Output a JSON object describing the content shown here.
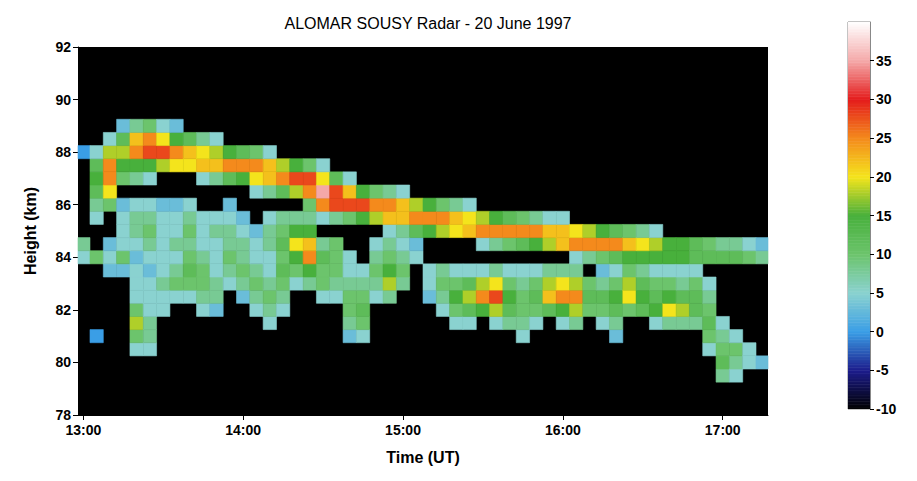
{
  "chart_data": {
    "type": "heatmap",
    "title": "ALOMAR SOUSY Radar - 20 June 1997",
    "x_label": "Time (UT)",
    "y_label": "Height (km)",
    "xlim": [
      778,
      1037
    ],
    "xticks": [
      {
        "value": 780,
        "label": "13:00"
      },
      {
        "value": 840,
        "label": "14:00"
      },
      {
        "value": 900,
        "label": "15:00"
      },
      {
        "value": 960,
        "label": "16:00"
      },
      {
        "value": 1020,
        "label": "17:00"
      }
    ],
    "ylim": [
      78,
      92
    ],
    "yticks": [
      78,
      80,
      82,
      84,
      86,
      88,
      90,
      92
    ],
    "grid": false,
    "x": [
      780,
      785,
      790,
      795,
      800,
      805,
      810,
      815,
      820,
      825,
      830,
      835,
      840,
      845,
      850,
      855,
      860,
      865,
      870,
      875,
      880,
      885,
      890,
      895,
      900,
      905,
      910,
      915,
      920,
      925,
      930,
      935,
      940,
      945,
      950,
      955,
      960,
      965,
      970,
      975,
      980,
      985,
      990,
      995,
      1000,
      1005,
      1010,
      1015,
      1020,
      1025,
      1030,
      1035
    ],
    "y": [
      79.5,
      80,
      80.5,
      81,
      81.5,
      82,
      82.5,
      83,
      83.5,
      84,
      84.5,
      85,
      85.5,
      86,
      86.5,
      87,
      87.5,
      88,
      88.5,
      89,
      89.5
    ],
    "values": [
      [
        null,
        null,
        null,
        null,
        null,
        null,
        null,
        null,
        null,
        5,
        8,
        null,
        null,
        null,
        null,
        null,
        null,
        0,
        null,
        null,
        null
      ],
      [
        null,
        null,
        null,
        0,
        null,
        null,
        null,
        null,
        null,
        10,
        null,
        null,
        5,
        8,
        12,
        15,
        12,
        5,
        null,
        null,
        null
      ],
      [
        null,
        null,
        null,
        null,
        null,
        null,
        null,
        null,
        3,
        5,
        3,
        null,
        null,
        10,
        20,
        25,
        25,
        18,
        5,
        null,
        null
      ],
      [
        null,
        null,
        null,
        null,
        null,
        null,
        null,
        null,
        3,
        10,
        5,
        5,
        5,
        3,
        null,
        10,
        15,
        18,
        12,
        3,
        null
      ],
      [
        null,
        null,
        5,
        10,
        18,
        10,
        5,
        5,
        5,
        3,
        5,
        8,
        8,
        5,
        null,
        8,
        15,
        25,
        22,
        8,
        null
      ],
      [
        null,
        null,
        5,
        8,
        8,
        5,
        5,
        5,
        3,
        5,
        8,
        10,
        8,
        5,
        null,
        5,
        15,
        28,
        25,
        10,
        null
      ],
      [
        null,
        null,
        null,
        null,
        null,
        5,
        5,
        8,
        5,
        5,
        5,
        5,
        5,
        3,
        null,
        null,
        18,
        28,
        20,
        5,
        null
      ],
      [
        null,
        null,
        null,
        null,
        null,
        null,
        5,
        10,
        8,
        5,
        8,
        5,
        5,
        3,
        null,
        null,
        20,
        25,
        15,
        3,
        null
      ],
      [
        null,
        null,
        null,
        null,
        null,
        null,
        5,
        10,
        12,
        10,
        8,
        10,
        8,
        5,
        null,
        null,
        20,
        22,
        12,
        null,
        null
      ],
      [
        null,
        null,
        null,
        null,
        null,
        5,
        8,
        10,
        10,
        8,
        5,
        5,
        5,
        null,
        null,
        5,
        22,
        20,
        8,
        null,
        null
      ],
      [
        null,
        null,
        null,
        null,
        null,
        3,
        8,
        8,
        5,
        5,
        5,
        8,
        5,
        null,
        null,
        8,
        22,
        18,
        5,
        null,
        null
      ],
      [
        null,
        null,
        null,
        null,
        null,
        null,
        null,
        5,
        8,
        10,
        8,
        8,
        5,
        3,
        null,
        12,
        25,
        15,
        null,
        null,
        null
      ],
      [
        null,
        null,
        null,
        null,
        null,
        null,
        3,
        8,
        10,
        8,
        8,
        5,
        3,
        null,
        null,
        15,
        25,
        12,
        null,
        null,
        null
      ],
      [
        null,
        null,
        null,
        null,
        null,
        5,
        8,
        10,
        8,
        5,
        5,
        3,
        null,
        null,
        5,
        20,
        25,
        10,
        null,
        null,
        null
      ],
      [
        null,
        null,
        null,
        null,
        5,
        8,
        10,
        8,
        5,
        5,
        8,
        8,
        5,
        null,
        8,
        22,
        22,
        5,
        null,
        null,
        null
      ],
      [
        null,
        null,
        null,
        null,
        null,
        5,
        8,
        10,
        12,
        10,
        12,
        10,
        8,
        null,
        12,
        25,
        18,
        null,
        null,
        null,
        null
      ],
      [
        null,
        null,
        null,
        null,
        null,
        null,
        null,
        5,
        10,
        15,
        20,
        15,
        8,
        null,
        18,
        28,
        15,
        null,
        null,
        null,
        null
      ],
      [
        null,
        null,
        null,
        null,
        null,
        null,
        null,
        8,
        15,
        25,
        22,
        15,
        8,
        10,
        25,
        28,
        10,
        null,
        null,
        null,
        null
      ],
      [
        null,
        null,
        null,
        null,
        null,
        null,
        5,
        10,
        10,
        12,
        8,
        null,
        5,
        25,
        35,
        20,
        5,
        null,
        null,
        null,
        null
      ],
      [
        null,
        null,
        null,
        null,
        null,
        null,
        5,
        8,
        10,
        10,
        10,
        null,
        8,
        28,
        28,
        12,
        null,
        null,
        null,
        null,
        null
      ],
      [
        null,
        null,
        null,
        3,
        8,
        10,
        10,
        8,
        5,
        5,
        null,
        null,
        10,
        28,
        22,
        5,
        null,
        null,
        null,
        null,
        null
      ],
      [
        null,
        null,
        null,
        5,
        10,
        12,
        10,
        8,
        5,
        null,
        null,
        null,
        15,
        28,
        15,
        null,
        null,
        null,
        null,
        null,
        null
      ],
      [
        null,
        null,
        null,
        null,
        null,
        null,
        5,
        8,
        10,
        8,
        5,
        null,
        18,
        25,
        10,
        null,
        null,
        null,
        null,
        null,
        null
      ],
      [
        null,
        null,
        null,
        null,
        null,
        null,
        8,
        18,
        15,
        10,
        8,
        5,
        22,
        25,
        8,
        null,
        null,
        null,
        null,
        null,
        null
      ],
      [
        null,
        null,
        null,
        null,
        null,
        null,
        null,
        8,
        10,
        8,
        5,
        8,
        22,
        22,
        5,
        null,
        null,
        null,
        null,
        null,
        null
      ],
      [
        null,
        null,
        null,
        null,
        null,
        null,
        null,
        null,
        null,
        5,
        3,
        12,
        25,
        18,
        null,
        null,
        null,
        null,
        null,
        null,
        null
      ],
      [
        null,
        null,
        null,
        null,
        null,
        null,
        3,
        5,
        5,
        null,
        null,
        15,
        25,
        15,
        null,
        null,
        null,
        null,
        null,
        null,
        null
      ],
      [
        null,
        null,
        null,
        null,
        null,
        5,
        8,
        10,
        8,
        null,
        null,
        18,
        25,
        10,
        null,
        null,
        null,
        null,
        null,
        null,
        null
      ],
      [
        null,
        null,
        null,
        null,
        5,
        10,
        15,
        10,
        5,
        null,
        null,
        20,
        22,
        8,
        null,
        null,
        null,
        null,
        null,
        null,
        null
      ],
      [
        null,
        null,
        null,
        null,
        5,
        12,
        18,
        12,
        5,
        null,
        null,
        22,
        20,
        5,
        null,
        null,
        null,
        null,
        null,
        null,
        null
      ],
      [
        null,
        null,
        null,
        null,
        null,
        15,
        25,
        18,
        5,
        null,
        5,
        25,
        18,
        null,
        null,
        null,
        null,
        null,
        null,
        null,
        null
      ],
      [
        null,
        null,
        null,
        null,
        5,
        18,
        28,
        20,
        8,
        null,
        8,
        25,
        15,
        null,
        null,
        null,
        null,
        null,
        null,
        null,
        null
      ],
      [
        null,
        null,
        null,
        null,
        8,
        12,
        15,
        10,
        5,
        null,
        10,
        25,
        12,
        null,
        null,
        null,
        null,
        null,
        null,
        null,
        null
      ],
      [
        null,
        null,
        null,
        5,
        8,
        10,
        10,
        8,
        5,
        null,
        12,
        25,
        10,
        null,
        null,
        null,
        null,
        null,
        null,
        null,
        null
      ],
      [
        null,
        null,
        null,
        null,
        5,
        10,
        12,
        10,
        5,
        null,
        15,
        25,
        8,
        null,
        null,
        null,
        null,
        null,
        null,
        null,
        null
      ],
      [
        null,
        null,
        null,
        null,
        null,
        12,
        22,
        18,
        8,
        null,
        18,
        22,
        5,
        null,
        null,
        null,
        null,
        null,
        null,
        null,
        null
      ],
      [
        null,
        null,
        null,
        null,
        5,
        15,
        25,
        20,
        8,
        null,
        22,
        22,
        5,
        null,
        null,
        null,
        null,
        null,
        null,
        null,
        null
      ],
      [
        null,
        null,
        null,
        null,
        8,
        18,
        25,
        18,
        8,
        5,
        25,
        20,
        null,
        null,
        null,
        null,
        null,
        null,
        null,
        null,
        null
      ],
      [
        null,
        null,
        null,
        null,
        null,
        10,
        12,
        10,
        null,
        8,
        25,
        18,
        null,
        null,
        null,
        null,
        null,
        null,
        null,
        null,
        null
      ],
      [
        null,
        null,
        null,
        null,
        5,
        10,
        12,
        8,
        3,
        10,
        25,
        15,
        null,
        null,
        null,
        null,
        null,
        null,
        null,
        null,
        null
      ],
      [
        null,
        null,
        null,
        3,
        8,
        12,
        15,
        10,
        5,
        12,
        25,
        12,
        null,
        null,
        null,
        null,
        null,
        null,
        null,
        null,
        null
      ],
      [
        null,
        null,
        null,
        null,
        null,
        10,
        20,
        18,
        10,
        15,
        22,
        10,
        null,
        null,
        null,
        null,
        null,
        null,
        null,
        null,
        null
      ],
      [
        null,
        null,
        null,
        null,
        null,
        12,
        15,
        12,
        8,
        15,
        20,
        8,
        null,
        null,
        null,
        null,
        null,
        null,
        null,
        null,
        null
      ],
      [
        null,
        null,
        null,
        null,
        5,
        15,
        12,
        10,
        5,
        15,
        18,
        5,
        null,
        null,
        null,
        null,
        null,
        null,
        null,
        null,
        null
      ],
      [
        null,
        null,
        null,
        null,
        8,
        20,
        15,
        10,
        5,
        15,
        15,
        null,
        null,
        null,
        null,
        null,
        null,
        null,
        null,
        null,
        null
      ],
      [
        null,
        null,
        null,
        null,
        8,
        18,
        12,
        8,
        5,
        15,
        15,
        null,
        null,
        null,
        null,
        null,
        null,
        null,
        null,
        null,
        null
      ],
      [
        null,
        null,
        null,
        null,
        8,
        12,
        12,
        10,
        5,
        12,
        12,
        null,
        null,
        null,
        null,
        null,
        null,
        null,
        null,
        null,
        null
      ],
      [
        null,
        null,
        5,
        10,
        12,
        10,
        8,
        5,
        null,
        12,
        10,
        null,
        null,
        null,
        null,
        null,
        null,
        null,
        null,
        null,
        null
      ],
      [
        8,
        12,
        10,
        8,
        5,
        null,
        null,
        null,
        null,
        12,
        8,
        null,
        null,
        null,
        null,
        null,
        null,
        null,
        null,
        null,
        null
      ],
      [
        5,
        8,
        10,
        5,
        null,
        null,
        null,
        null,
        null,
        12,
        8,
        null,
        null,
        null,
        null,
        null,
        null,
        null,
        null,
        null,
        null
      ],
      [
        null,
        5,
        5,
        null,
        null,
        null,
        null,
        null,
        null,
        10,
        5,
        null,
        null,
        null,
        null,
        null,
        null,
        null,
        null,
        null,
        null
      ],
      [
        null,
        3,
        null,
        null,
        null,
        null,
        null,
        null,
        null,
        8,
        3,
        null,
        null,
        null,
        null,
        null,
        null,
        null,
        null,
        null,
        null
      ]
    ],
    "colorbar": {
      "range": [
        -10,
        40
      ],
      "ticks": [
        -10,
        -5,
        0,
        5,
        10,
        15,
        20,
        25,
        30,
        35
      ]
    }
  }
}
